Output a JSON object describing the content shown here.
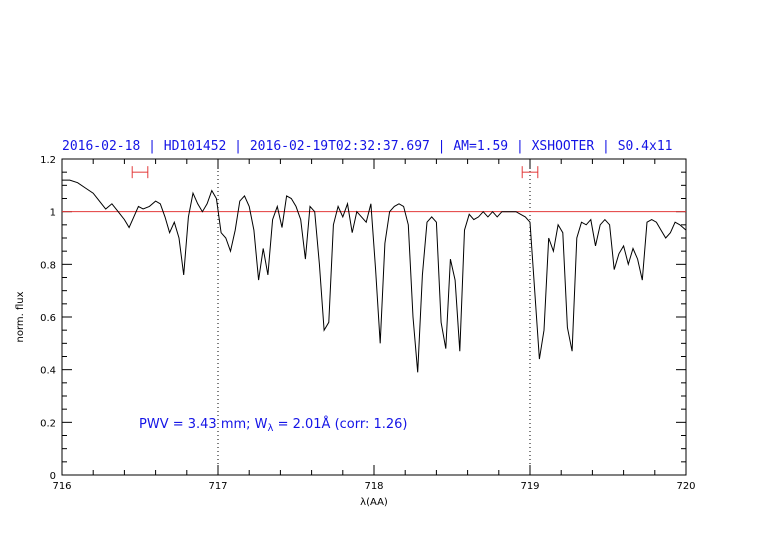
{
  "header": {
    "text": "2016-02-18 | HD101452 | 2016-02-19T02:32:37.697 | AM=1.59 | XSHOOTER | S0.4x11"
  },
  "annotation": {
    "prefix": "PWV = 3.43 mm; W",
    "subscript": "λ",
    "suffix": " = 2.01Å (corr: 1.26)"
  },
  "colors": {
    "header": "#1414e6",
    "reference_line": "#e23a3a",
    "spectrum": "#000000",
    "markers": "#e23a3a"
  },
  "chart_data": {
    "type": "line",
    "xlabel": "λ(AA)",
    "ylabel": "norm. flux",
    "xlim": [
      716,
      720
    ],
    "ylim": [
      0,
      1.2
    ],
    "x_ticks": [
      716,
      717,
      718,
      719,
      720
    ],
    "x_tick_labels": [
      "716",
      "717",
      "718",
      "719",
      "720"
    ],
    "y_ticks": [
      0,
      0.2,
      0.4,
      0.6,
      0.8,
      1,
      1.2
    ],
    "y_tick_labels": [
      "0",
      "0.2",
      "0.4",
      "0.6",
      "0.8",
      "1",
      "1.2"
    ],
    "reference_line": 1.0,
    "dotted_vlines": [
      717.0,
      719.0
    ],
    "interval_markers": [
      {
        "x": [
          716.45,
          716.55
        ],
        "y": 1.15
      },
      {
        "x": [
          718.95,
          719.05
        ],
        "y": 1.15
      }
    ],
    "series": [
      {
        "x": [
          716.0,
          716.05,
          716.1,
          716.15,
          716.2,
          716.24,
          716.28,
          716.32,
          716.36,
          716.4,
          716.43,
          716.46,
          716.49,
          716.52,
          716.56,
          716.6,
          716.63,
          716.66,
          716.69,
          716.72,
          716.75,
          716.78,
          716.81,
          716.84,
          716.87,
          716.9,
          716.93,
          716.96,
          716.99,
          717.02,
          717.05,
          717.08,
          717.11,
          717.14,
          717.17,
          717.2,
          717.23,
          717.26,
          717.29,
          717.32,
          717.35,
          717.38,
          717.41,
          717.44,
          717.47,
          717.5,
          717.53,
          717.56,
          717.59,
          717.62,
          717.65,
          717.68,
          717.71,
          717.74,
          717.77,
          717.8,
          717.83,
          717.86,
          717.89,
          717.92,
          717.95,
          717.98,
          718.01,
          718.04,
          718.07,
          718.1,
          718.13,
          718.16,
          718.19,
          718.22,
          718.25,
          718.28,
          718.31,
          718.34,
          718.37,
          718.4,
          718.43,
          718.46,
          718.49,
          718.52,
          718.55,
          718.58,
          718.61,
          718.64,
          718.67,
          718.7,
          718.73,
          718.76,
          718.79,
          718.82,
          718.85,
          718.88,
          718.91,
          718.94,
          718.97,
          719.0,
          719.03,
          719.06,
          719.09,
          719.12,
          719.15,
          719.18,
          719.21,
          719.24,
          719.27,
          719.3,
          719.33,
          719.36,
          719.39,
          719.42,
          719.45,
          719.48,
          719.51,
          719.54,
          719.57,
          719.6,
          719.63,
          719.66,
          719.69,
          719.72,
          719.75,
          719.78,
          719.81,
          719.84,
          719.87,
          719.9,
          719.93,
          719.96,
          720.0
        ],
        "y": [
          1.12,
          1.12,
          1.11,
          1.09,
          1.07,
          1.04,
          1.01,
          1.03,
          1.0,
          0.97,
          0.94,
          0.98,
          1.02,
          1.01,
          1.02,
          1.04,
          1.03,
          0.98,
          0.92,
          0.96,
          0.9,
          0.76,
          0.98,
          1.07,
          1.03,
          1.0,
          1.03,
          1.08,
          1.05,
          0.92,
          0.9,
          0.85,
          0.93,
          1.04,
          1.06,
          1.02,
          0.93,
          0.74,
          0.86,
          0.76,
          0.97,
          1.02,
          0.94,
          1.06,
          1.05,
          1.02,
          0.97,
          0.82,
          1.02,
          1.0,
          0.8,
          0.55,
          0.58,
          0.95,
          1.02,
          0.98,
          1.03,
          0.92,
          1.0,
          0.98,
          0.96,
          1.03,
          0.78,
          0.5,
          0.88,
          1.0,
          1.02,
          1.03,
          1.02,
          0.95,
          0.6,
          0.39,
          0.76,
          0.96,
          0.98,
          0.96,
          0.58,
          0.48,
          0.82,
          0.74,
          0.47,
          0.93,
          0.99,
          0.97,
          0.98,
          1.0,
          0.98,
          1.0,
          0.98,
          1.0,
          1.0,
          1.0,
          1.0,
          0.99,
          0.98,
          0.96,
          0.7,
          0.44,
          0.55,
          0.9,
          0.85,
          0.95,
          0.92,
          0.56,
          0.47,
          0.9,
          0.96,
          0.95,
          0.97,
          0.87,
          0.95,
          0.97,
          0.95,
          0.78,
          0.84,
          0.87,
          0.8,
          0.86,
          0.82,
          0.74,
          0.96,
          0.97,
          0.96,
          0.93,
          0.9,
          0.92,
          0.96,
          0.95,
          0.93
        ]
      }
    ]
  }
}
